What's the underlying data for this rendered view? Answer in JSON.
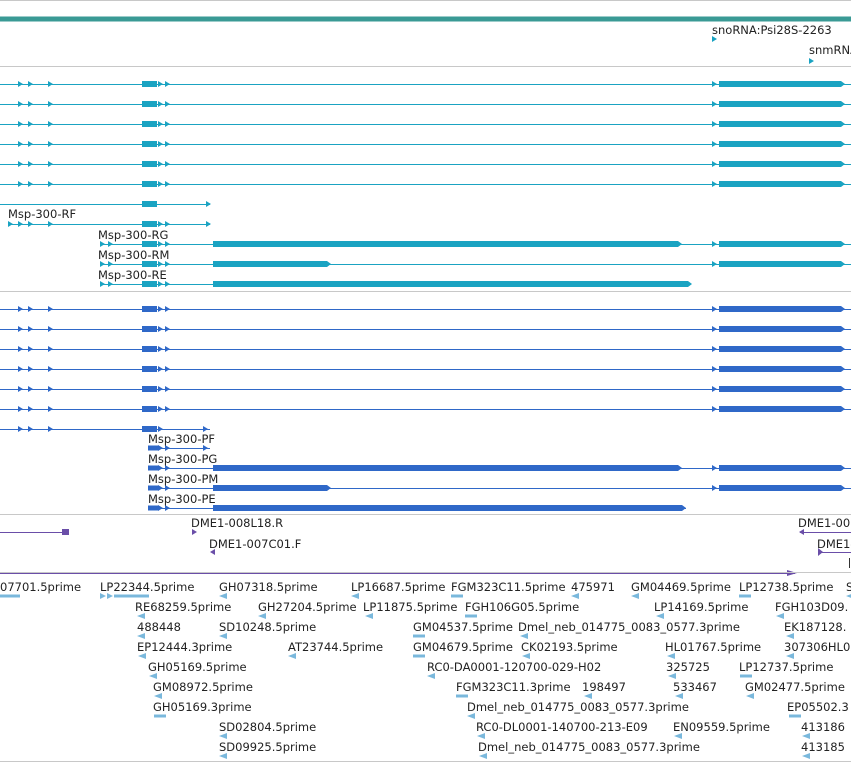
{
  "colors": {
    "top_bar": "#3a9a95",
    "transcript": "#1aa3c2",
    "protein": "#2f68c8",
    "clone": "#6a4ea8",
    "est": "#7ab8dc",
    "separator": "#c8c8c8"
  },
  "snorna_track": {
    "labels": [
      "snoRNA:Psi28S-2263",
      "snmRNA:"
    ]
  },
  "transcript_track": {
    "labels": [
      "Msp-300-RF",
      "Msp-300-RG",
      "Msp-300-RM",
      "Msp-300-RE"
    ]
  },
  "protein_track": {
    "labels": [
      "Msp-300-PF",
      "Msp-300-PG",
      "Msp-300-PM",
      "Msp-300-PE"
    ]
  },
  "clone_track": {
    "labels": [
      "DME1-008L18.R",
      "DME1-007C01.F",
      "DME1-00",
      "DME1-"
    ]
  },
  "est_track": {
    "labels": [
      "07701.5prime",
      "LP22344.5prime",
      "GH07318.5prime",
      "LP16687.5prime",
      "FGM323C11.5prime",
      "475971",
      "GM04469.5prime",
      "LP12738.5prime",
      "S",
      "RE68259.5prime",
      "GH27204.5prime",
      "LP11875.5prime",
      "FGH106G05.5prime",
      "LP14169.5prime",
      "FGH103D09.",
      "488448",
      "SD10248.5prime",
      "GM04537.5prime",
      "Dmel_neb_014775_0083_0577.3prime",
      "EK187128.",
      "EP12444.3prime",
      "AT23744.5prime",
      "GM04679.5prime",
      "CK02193.5prime",
      "HL01767.5prime",
      "307306HL0",
      "GH05169.5prime",
      "RC0-DA0001-120700-029-H02",
      "325725",
      "LP12737.5prime",
      "GM08972.5prime",
      "FGM323C11.3prime",
      "198497",
      "533467",
      "GM02477.5prime",
      "GH05169.3prime",
      "Dmel_neb_014775_0083_0577.3prime",
      "EP05502.3",
      "SD02804.5prime",
      "RC0-DL0001-140700-213-E09",
      "EN09559.5prime",
      "413186",
      "SD09925.5prime",
      "Dmel_neb_014775_0083_0577.3prime",
      "413185"
    ]
  }
}
